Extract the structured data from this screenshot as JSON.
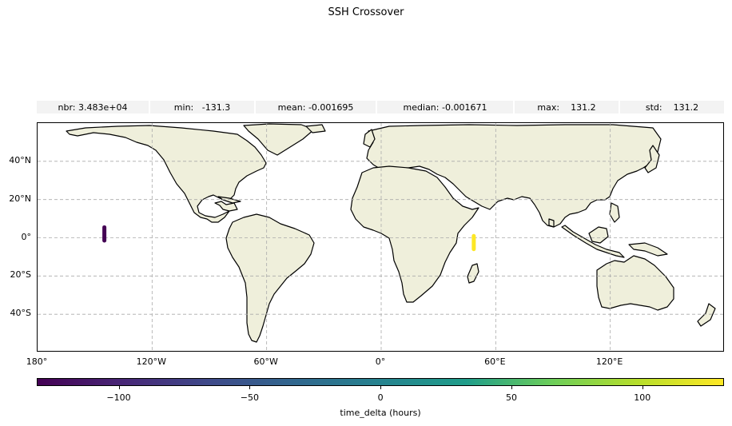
{
  "title": "SSH Crossover",
  "stats": [
    {
      "label": "nbr: 3.483e+04"
    },
    {
      "label": "min:   -131.3"
    },
    {
      "label": "mean: -0.001695"
    },
    {
      "label": "median: -0.001671"
    },
    {
      "label": "max:    131.2"
    },
    {
      "label": "std:    131.2"
    }
  ],
  "map": {
    "projection": "PlateCarree",
    "lon_range": [
      -180,
      180
    ],
    "lat_range": [
      -60,
      60
    ],
    "grid": true,
    "land_color": "#efefdb",
    "ocean_color": "#ffffff",
    "lat_ticks": [
      {
        "value": 40,
        "label": "40°N"
      },
      {
        "value": 20,
        "label": "20°N"
      },
      {
        "value": 0,
        "label": "0°"
      },
      {
        "value": -20,
        "label": "20°S"
      },
      {
        "value": -40,
        "label": "40°S"
      }
    ],
    "lon_ticks": [
      {
        "value": -180,
        "label": "180°"
      },
      {
        "value": -120,
        "label": "120°W"
      },
      {
        "value": -60,
        "label": "60°W"
      },
      {
        "value": 0,
        "label": "0°"
      },
      {
        "value": 60,
        "label": "60°E"
      },
      {
        "value": 120,
        "label": "120°E"
      }
    ],
    "tracks": [
      {
        "lon": -145,
        "lat_min": -2.5,
        "lat_max": 6.5,
        "time_delta": -131.3,
        "color": "#440154"
      },
      {
        "lon": 48.5,
        "lat_min": -7,
        "lat_max": 2,
        "time_delta": 131.2,
        "color": "#fde725"
      }
    ]
  },
  "colorbar": {
    "label": "time_delta (hours)",
    "range": [
      -131.3,
      131.2
    ],
    "ticks": [
      {
        "value": -100,
        "label": "−100"
      },
      {
        "value": -50,
        "label": "−50"
      },
      {
        "value": 0,
        "label": "0"
      },
      {
        "value": 50,
        "label": "50"
      },
      {
        "value": 100,
        "label": "100"
      }
    ]
  }
}
